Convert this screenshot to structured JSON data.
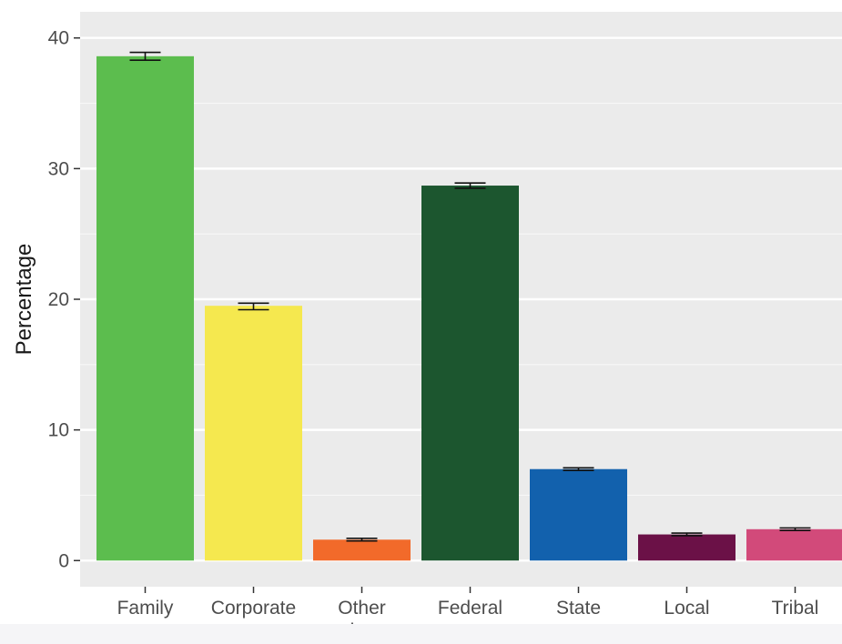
{
  "chart_data": {
    "type": "bar",
    "title": "",
    "xlabel": "",
    "ylabel": "Percentage",
    "ylim": [
      -2,
      42
    ],
    "yticks": [
      0,
      10,
      20,
      30,
      40
    ],
    "grid": true,
    "categories": [
      {
        "label": [
          "Family"
        ],
        "value": 38.6,
        "err_low": 38.3,
        "err_high": 38.9,
        "color": "#5cbd4e"
      },
      {
        "label": [
          "Corporate"
        ],
        "value": 19.5,
        "err_low": 19.2,
        "err_high": 19.7,
        "color": "#f5e84f"
      },
      {
        "label": [
          "Other",
          "private"
        ],
        "value": 1.6,
        "err_low": 1.5,
        "err_high": 1.7,
        "color": "#f26a2a"
      },
      {
        "label": [
          "Federal"
        ],
        "value": 28.7,
        "err_low": 28.5,
        "err_high": 28.9,
        "color": "#1c562f"
      },
      {
        "label": [
          "State"
        ],
        "value": 7.0,
        "err_low": 6.9,
        "err_high": 7.1,
        "color": "#1261ad"
      },
      {
        "label": [
          "Local"
        ],
        "value": 2.0,
        "err_low": 1.9,
        "err_high": 2.1,
        "color": "#6b1147"
      },
      {
        "label": [
          "Tribal"
        ],
        "value": 2.4,
        "err_low": 2.3,
        "err_high": 2.5,
        "color": "#d24a7a"
      }
    ]
  }
}
